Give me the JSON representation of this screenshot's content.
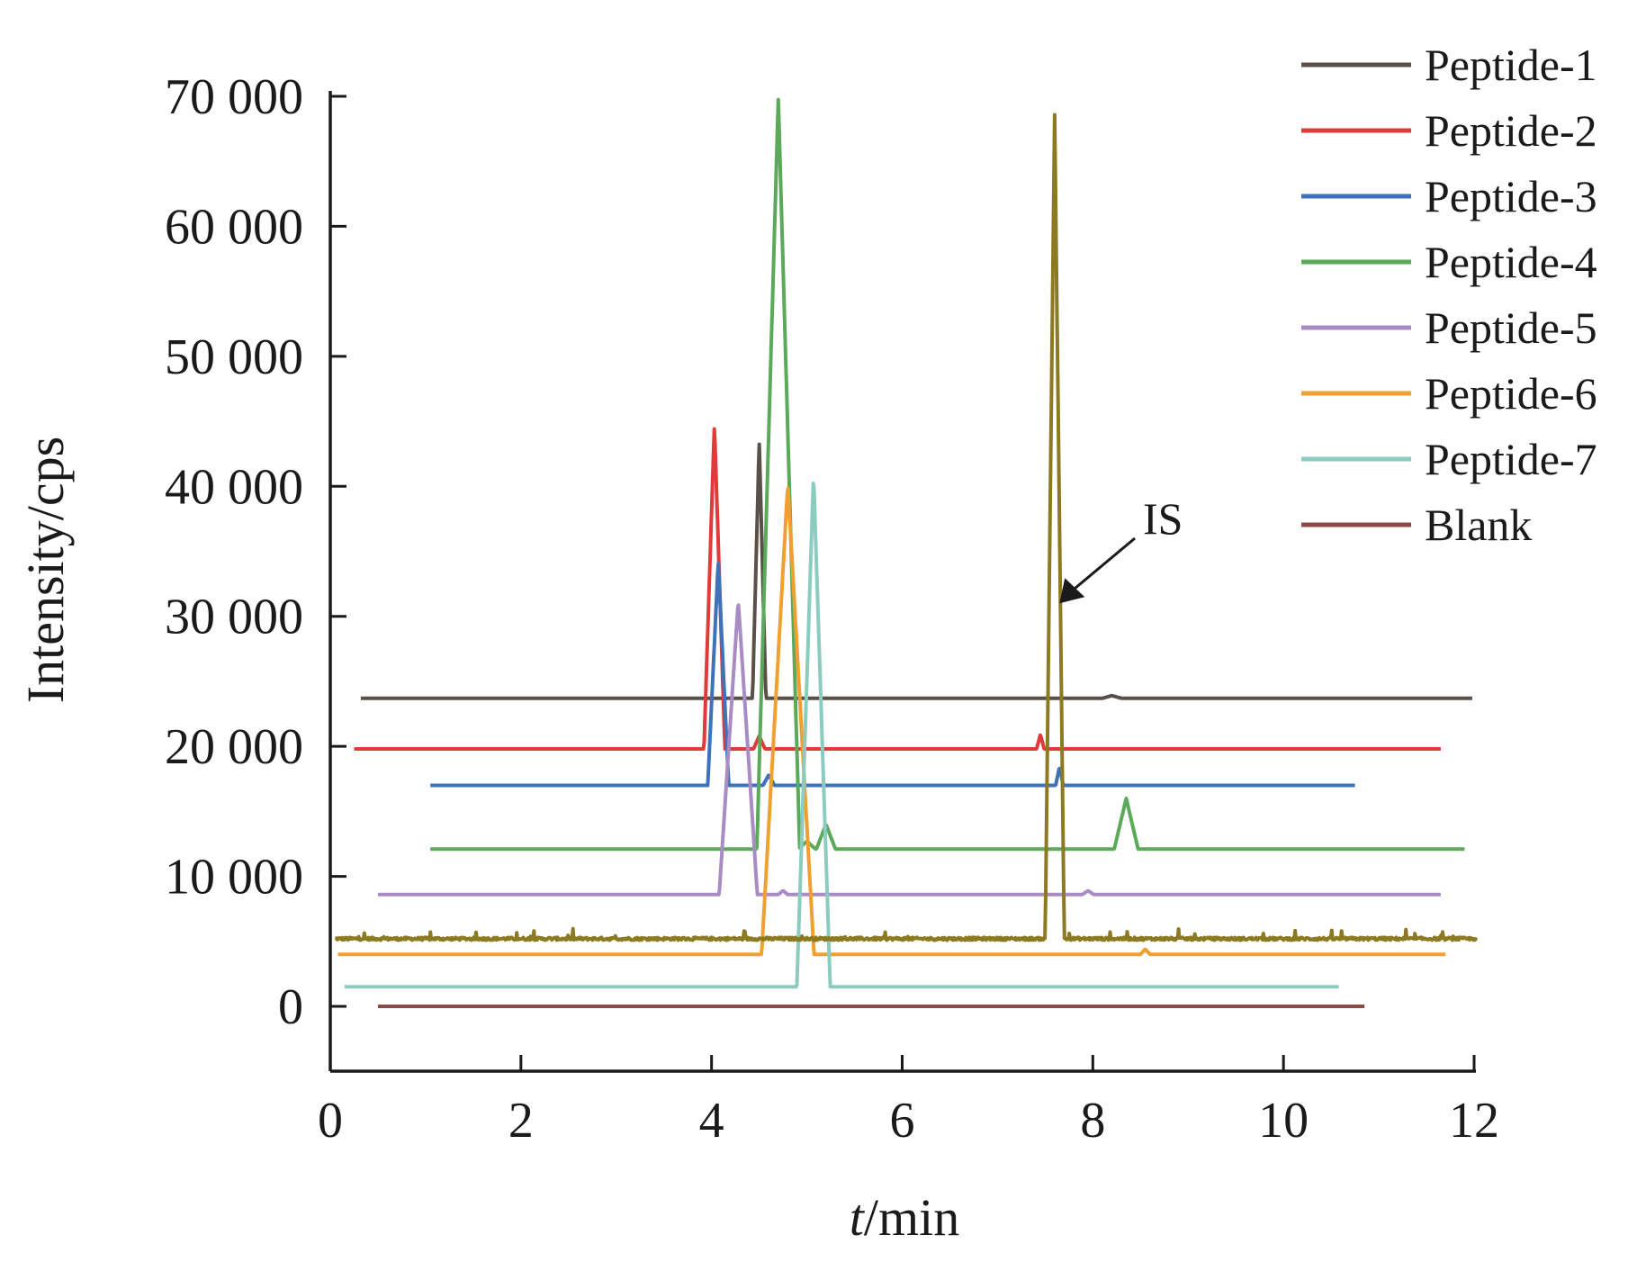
{
  "chart_data": {
    "type": "line",
    "xlabel_italic": "t",
    "xlabel_rest": "/min",
    "ylabel": "Intensity/cps",
    "xlim": [
      0,
      12
    ],
    "ylim": [
      -5000,
      70000
    ],
    "xticks": [
      0,
      2,
      4,
      6,
      8,
      10,
      12
    ],
    "xtick_labels": [
      "0",
      "2",
      "4",
      "6",
      "8",
      "10",
      "12"
    ],
    "yticks": [
      0,
      10000,
      20000,
      30000,
      40000,
      50000,
      60000,
      70000
    ],
    "ytick_labels": [
      "0",
      "10 000",
      "20 000",
      "30 000",
      "40 000",
      "50 000",
      "60 000",
      "70 000"
    ],
    "grid": false,
    "legend_position": "top-right",
    "annotation": {
      "text": "IS",
      "points_to": {
        "x": 7.65,
        "y": 31000
      }
    },
    "series": [
      {
        "name": "Peptide-1",
        "color": "#5a5048",
        "baseline": 23700,
        "x_range": [
          0.32,
          11.98
        ],
        "peaks": [
          [
            4.5,
            43500,
            0.14
          ],
          [
            8.2,
            23900,
            0.2
          ]
        ]
      },
      {
        "name": "Peptide-2",
        "color": "#e03a3a",
        "baseline": 19800,
        "x_range": [
          0.25,
          11.65
        ],
        "peaks": [
          [
            4.03,
            44800,
            0.22
          ],
          [
            4.5,
            20800,
            0.12
          ],
          [
            7.45,
            20900,
            0.08
          ]
        ]
      },
      {
        "name": "Peptide-3",
        "color": "#3f72b8",
        "baseline": 17000,
        "x_range": [
          1.05,
          10.75
        ],
        "peaks": [
          [
            4.07,
            34200,
            0.22
          ],
          [
            4.6,
            17800,
            0.12
          ],
          [
            7.65,
            18400,
            0.08
          ]
        ]
      },
      {
        "name": "Peptide-4",
        "color": "#5aaa5a",
        "baseline": 12100,
        "x_range": [
          1.05,
          11.9
        ],
        "peaks": [
          [
            4.7,
            69800,
            0.45
          ],
          [
            5.0,
            12700,
            0.18
          ],
          [
            5.2,
            14000,
            0.2
          ],
          [
            8.35,
            16000,
            0.25
          ]
        ]
      },
      {
        "name": "Peptide-5",
        "color": "#a98cc4",
        "baseline": 8600,
        "x_range": [
          0.5,
          11.65
        ],
        "peaks": [
          [
            4.28,
            31200,
            0.4
          ],
          [
            4.75,
            8900,
            0.1
          ],
          [
            7.95,
            8900,
            0.12
          ]
        ]
      },
      {
        "name": "Peptide-6",
        "color": "#f0a030",
        "baseline": 4000,
        "x_range": [
          0.08,
          11.7
        ],
        "peaks": [
          [
            4.8,
            40200,
            0.55
          ],
          [
            8.55,
            4400,
            0.1
          ]
        ]
      },
      {
        "name": "Peptide-7",
        "color": "#8ccbbf",
        "baseline": 1500,
        "x_range": [
          0.15,
          10.58
        ],
        "peaks": [
          [
            5.07,
            40900,
            0.35
          ]
        ]
      },
      {
        "name": "Blank",
        "color": "#8a4a48",
        "baseline": 0,
        "x_range": [
          0.5,
          10.85
        ],
        "peaks": []
      },
      {
        "name": "",
        "legend": false,
        "color": "#8b7a22",
        "baseline": 5200,
        "x_range": [
          0.05,
          12.02
        ],
        "peaks": [
          [
            7.6,
            68800,
            0.2
          ]
        ],
        "noise": true
      }
    ]
  }
}
